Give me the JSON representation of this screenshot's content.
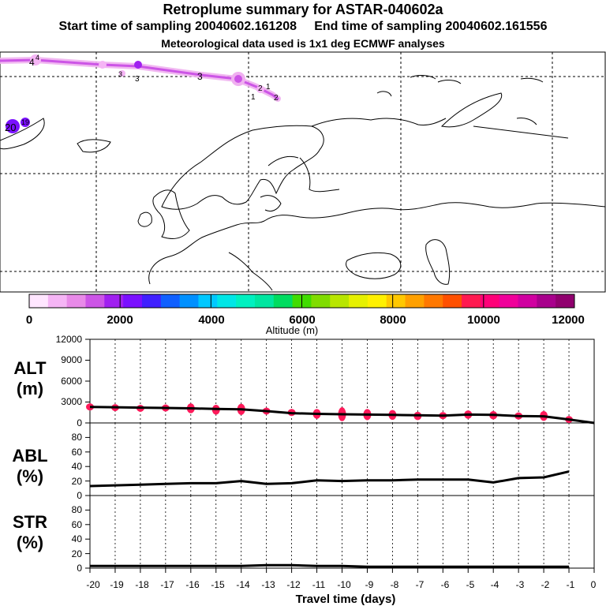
{
  "header": {
    "title": "Retroplume summary for ASTAR-040602a",
    "line2": "Start time of sampling 20040602.161208     End time of sampling 20040602.161556",
    "line3": "Meteorological data used is 1x1 deg ECMWF analyses"
  },
  "map": {
    "plume_labels": [
      "4",
      "4",
      "3",
      "3",
      "3",
      "2",
      "1",
      "1",
      "2",
      "20",
      "19"
    ]
  },
  "colorbar": {
    "ticks": [
      "0",
      "2000",
      "4000",
      "6000",
      "8000",
      "10000",
      "12000"
    ],
    "label": "Altitude (m)",
    "colors": [
      "#ffe6ff",
      "#f5b5f5",
      "#e88ae8",
      "#cc55e6",
      "#a020f0",
      "#7a10ff",
      "#4020ff",
      "#1060ff",
      "#0090ff",
      "#00c8ff",
      "#00e6e6",
      "#00f0c0",
      "#00e6a0",
      "#00dc60",
      "#40dc00",
      "#80dc00",
      "#b8e600",
      "#e6f000",
      "#fff000",
      "#ffc800",
      "#ffa000",
      "#ff7800",
      "#ff5000",
      "#ff1a50",
      "#ff0078",
      "#f0009a",
      "#d000a0",
      "#a8008c",
      "#90006e"
    ]
  },
  "chart_data": [
    {
      "type": "line",
      "panel": "ALT",
      "ylabel": "ALT",
      "yunit": "(m)",
      "ylim": [
        0,
        12000
      ],
      "yticks": [
        "0",
        "3000",
        "6000",
        "9000",
        "12000"
      ],
      "x": [
        -20,
        -19,
        -18,
        -17,
        -16,
        -15,
        -14,
        -13,
        -12,
        -11,
        -10,
        -9,
        -8,
        -7,
        -6,
        -5,
        -4,
        -3,
        -2,
        -1,
        0
      ],
      "values": [
        2300,
        2250,
        2200,
        2150,
        2100,
        2000,
        1950,
        1700,
        1400,
        1300,
        1250,
        1200,
        1150,
        1100,
        1050,
        1200,
        1150,
        1000,
        950,
        500,
        0
      ],
      "markers": [
        {
          "x": -20,
          "y": 2300,
          "spread": 500
        },
        {
          "x": -19,
          "y": 2200,
          "spread": 400
        },
        {
          "x": -18,
          "y": 2100,
          "spread": 400
        },
        {
          "x": -17,
          "y": 2150,
          "spread": 400
        },
        {
          "x": -16,
          "y": 2100,
          "spread": 700
        },
        {
          "x": -15,
          "y": 1900,
          "spread": 700
        },
        {
          "x": -14,
          "y": 1950,
          "spread": 800
        },
        {
          "x": -13,
          "y": 1700,
          "spread": 400
        },
        {
          "x": -12,
          "y": 1500,
          "spread": 500
        },
        {
          "x": -11,
          "y": 1300,
          "spread": 700
        },
        {
          "x": -10,
          "y": 1250,
          "spread": 1000
        },
        {
          "x": -9,
          "y": 1200,
          "spread": 800
        },
        {
          "x": -8,
          "y": 1150,
          "spread": 700
        },
        {
          "x": -7,
          "y": 1000,
          "spread": 600
        },
        {
          "x": -6,
          "y": 1050,
          "spread": 500
        },
        {
          "x": -5,
          "y": 1200,
          "spread": 600
        },
        {
          "x": -4,
          "y": 1100,
          "spread": 600
        },
        {
          "x": -3,
          "y": 1000,
          "spread": 500
        },
        {
          "x": -2,
          "y": 1000,
          "spread": 700
        },
        {
          "x": -1,
          "y": 500,
          "spread": 400
        }
      ]
    },
    {
      "type": "line",
      "panel": "ABL",
      "ylabel": "ABL",
      "yunit": "(%)",
      "ylim": [
        0,
        100
      ],
      "yticks": [
        "0",
        "20",
        "40",
        "60",
        "80"
      ],
      "x": [
        -20,
        -19,
        -18,
        -17,
        -16,
        -15,
        -14,
        -13,
        -12,
        -11,
        -10,
        -9,
        -8,
        -7,
        -6,
        -5,
        -4,
        -3,
        -2,
        -1
      ],
      "values": [
        13,
        14,
        15,
        16,
        17,
        17,
        20,
        16,
        17,
        21,
        20,
        21,
        21,
        22,
        22,
        22,
        18,
        24,
        25,
        33
      ]
    },
    {
      "type": "line",
      "panel": "STR",
      "ylabel": "STR",
      "yunit": "(%)",
      "ylim": [
        0,
        100
      ],
      "yticks": [
        "0",
        "20",
        "40",
        "60",
        "80"
      ],
      "x": [
        -20,
        -19,
        -18,
        -17,
        -16,
        -15,
        -14,
        -13,
        -12,
        -11,
        -10,
        -9,
        -8,
        -7,
        -6,
        -5,
        -4,
        -3,
        -2,
        -1
      ],
      "values": [
        3,
        3,
        3,
        3,
        3,
        3,
        3,
        4,
        4,
        3,
        3,
        2,
        2,
        2,
        2,
        2,
        2,
        2,
        2,
        2
      ]
    }
  ],
  "xaxis": {
    "label": "Travel time (days)",
    "ticks": [
      "-20",
      "-19",
      "-18",
      "-17",
      "-16",
      "-15",
      "-14",
      "-13",
      "-12",
      "-11",
      "-10",
      "-9",
      "-8",
      "-7",
      "-6",
      "-5",
      "-4",
      "-3",
      "-2",
      "-1",
      "0"
    ]
  }
}
